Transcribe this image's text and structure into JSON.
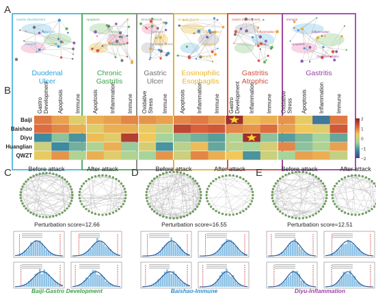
{
  "panels": {
    "A": "A",
    "B": "B",
    "C": "C",
    "D": "D",
    "E": "E"
  },
  "panel_a": {
    "boxes": [
      {
        "color": "#4bb6e0",
        "labels": [
          "Gastric Development",
          "Apoptosis",
          "Immune"
        ]
      },
      {
        "color": "#4aae5a",
        "labels": [
          "Apoptosis",
          "Immune",
          "Inflammation"
        ]
      },
      {
        "color": "#8a8a8a",
        "labels": [
          "Smooth Muscle",
          "Immune",
          "Oxidative Stress"
        ]
      },
      {
        "color": "#e0b53a",
        "labels": [
          "Smooth Muscle",
          "Inflammation",
          "Apoptosis",
          "Immune"
        ]
      },
      {
        "color": "#d24b3a",
        "labels": [
          "Gastro Development",
          "Inflammation",
          "Immune"
        ]
      },
      {
        "color": "#9a3fa6",
        "labels": [
          "Immune",
          "Inflammation",
          "Apoptosis",
          "Oxidative Stress"
        ]
      }
    ]
  },
  "panel_b": {
    "diseases": [
      {
        "name": "Duodenal\nUlcer",
        "color": "#2aa2d6"
      },
      {
        "name": "Chronic\nGastritis",
        "color": "#3aa04a"
      },
      {
        "name": "Gastric\nUlcer",
        "color": "#707070"
      },
      {
        "name": "Eosinophilic\nEsophagitis",
        "color": "#e7b52c"
      },
      {
        "name": "Gastritis\nAtrophic",
        "color": "#d24b3a"
      },
      {
        "name": "Gastritis",
        "color": "#9a3fa6"
      }
    ],
    "columns": [
      "Gastro Development",
      "Apoptosis",
      "Immune",
      "Apoptosis",
      "Inflammation",
      "Immune",
      "Oxidative Stress",
      "Immune",
      "Apoptosis",
      "Inflammation",
      "Immune",
      "Gastro Development",
      "Inflammation",
      "Immune",
      "Oxidative Stress",
      "Apoptosis",
      "Inflammation",
      "Immune"
    ],
    "column_groups": [
      3,
      3,
      2,
      3,
      3,
      4
    ],
    "rows": [
      "Baiji",
      "Baishao",
      "Diyu",
      "Huanglian",
      "QWZT"
    ],
    "colorbar_ticks": [
      "2",
      "1",
      "0",
      "−1",
      "−2"
    ],
    "colorbar_colors": [
      "#8a1f2a",
      "#d9603b",
      "#f1c95b",
      "#a7d49b",
      "#3e8a9e",
      "#463f8f"
    ],
    "values": [
      [
        1.0,
        0.7,
        0.2,
        0.6,
        0.7,
        0.9,
        0.8,
        0.7,
        0.9,
        1.0,
        0.8,
        1.8,
        0.5,
        0.6,
        0.8,
        0.3,
        -1.4,
        1.0
      ],
      [
        1.1,
        0.9,
        0.6,
        0.2,
        0.6,
        0.6,
        0.3,
        -0.1,
        1.5,
        1.2,
        1.3,
        0.9,
        0.8,
        1.1,
        0.7,
        0.4,
        0.2,
        1.3
      ],
      [
        -1.2,
        -0.6,
        -1.1,
        0.5,
        0.2,
        1.6,
        0.4,
        -0.4,
        -0.6,
        -0.8,
        -1.0,
        -0.3,
        1.8,
        -0.6,
        -1.0,
        -0.7,
        -0.4,
        -0.9
      ],
      [
        0.0,
        -1.2,
        -0.8,
        -0.3,
        0.6,
        -0.5,
        0.1,
        -1.1,
        -0.2,
        0.5,
        -0.9,
        -0.2,
        -0.4,
        0.1,
        0.9,
        -0.6,
        -0.3,
        0.7
      ],
      [
        0.3,
        0.8,
        -0.3,
        0.6,
        0.2,
        -0.3,
        -0.4,
        0.8,
        0.0,
        0.9,
        0.6,
        0.4,
        -1.1,
        0.0,
        -0.4,
        0.7,
        0.6,
        -0.1
      ]
    ],
    "stars": [
      [
        0,
        11
      ],
      [
        2,
        12
      ]
    ]
  },
  "panel_cde": [
    {
      "before": "Before attack",
      "after": "After attack",
      "score": "Perturbation score=12.66",
      "caption": "Baiji-Gastro Development",
      "caption_color": "#3aa04a",
      "node_color": "#4f8a3c"
    },
    {
      "before": "Before attack",
      "after": "After attack",
      "score": "Perturbation score=16.55",
      "caption": "Baishao-Immune",
      "caption_color": "#2a8fd0",
      "node_color": "#4f8a3c"
    },
    {
      "before": "Before attack",
      "after": "After attack",
      "score": "Perturbation score=12.51",
      "caption": "Diyu-Inflammation",
      "caption_color": "#9a3fa6",
      "node_color": "#4f8a3c"
    }
  ]
}
